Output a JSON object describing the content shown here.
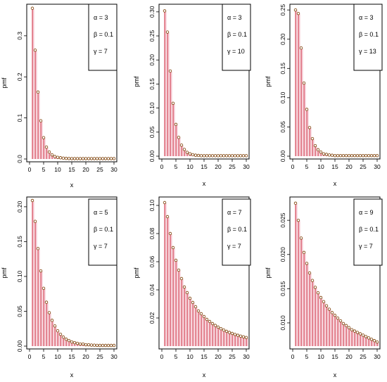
{
  "chart_data": [
    {
      "type": "stem",
      "xlabel": "x",
      "ylabel": "pmf",
      "x": [
        1,
        2,
        3,
        4,
        5,
        6,
        7,
        8,
        9,
        10,
        11,
        12,
        13,
        14,
        15,
        16,
        17,
        18,
        19,
        20,
        21,
        22,
        23,
        24,
        25,
        26,
        27,
        28,
        29,
        30
      ],
      "values": [
        0.367,
        0.265,
        0.163,
        0.093,
        0.052,
        0.029,
        0.017,
        0.01,
        0.006,
        0.004,
        0.003,
        0.002,
        0.0015,
        0.0012,
        0.001,
        0.001,
        0.001,
        0.001,
        0.001,
        0.001,
        0.001,
        0.001,
        0.001,
        0.001,
        0.001,
        0.001,
        0.001,
        0.001,
        0.001,
        0.001
      ],
      "xlim": [
        0,
        30
      ],
      "ylim": [
        0,
        0.37
      ],
      "xticks": [
        "0",
        "5",
        "10",
        "15",
        "20",
        "25",
        "30"
      ],
      "yticks": [
        "0.0",
        "0.1",
        "0.2",
        "0.3"
      ],
      "ytick_values": [
        0,
        0.1,
        0.2,
        0.3
      ],
      "legend": [
        "α = 3",
        "β = 0.1",
        "γ = 7"
      ],
      "legend_position": "top-right",
      "colors": {
        "stem": "#c8142a",
        "point": "#7a3b00",
        "shadow": "#f5c8d2"
      }
    },
    {
      "type": "stem",
      "xlabel": "x",
      "ylabel": "pmf",
      "x": [
        1,
        2,
        3,
        4,
        5,
        6,
        7,
        8,
        9,
        10,
        11,
        12,
        13,
        14,
        15,
        16,
        17,
        18,
        19,
        20,
        21,
        22,
        23,
        24,
        25,
        26,
        27,
        28,
        29,
        30
      ],
      "values": [
        0.302,
        0.258,
        0.177,
        0.11,
        0.066,
        0.039,
        0.023,
        0.014,
        0.008,
        0.005,
        0.003,
        0.002,
        0.0015,
        0.001,
        0.001,
        0.001,
        0.001,
        0.001,
        0.001,
        0.001,
        0.001,
        0.001,
        0.001,
        0.001,
        0.001,
        0.001,
        0.001,
        0.001,
        0.001,
        0.001
      ],
      "xlim": [
        0,
        30
      ],
      "ylim": [
        0,
        0.31
      ],
      "xticks": [
        "0",
        "5",
        "10",
        "15",
        "20",
        "25",
        "30"
      ],
      "yticks": [
        "0.00",
        "0.05",
        "0.10",
        "0.15",
        "0.20",
        "0.25",
        "0.30"
      ],
      "ytick_values": [
        0,
        0.05,
        0.1,
        0.15,
        0.2,
        0.25,
        0.3
      ],
      "legend": [
        "α = 3",
        "β = 0.1",
        "γ = 10"
      ],
      "legend_position": "top-right",
      "colors": {
        "stem": "#c8142a",
        "point": "#7a3b00",
        "shadow": "#f5c8d2"
      }
    },
    {
      "type": "stem",
      "xlabel": "x",
      "ylabel": "pmf",
      "x": [
        1,
        2,
        3,
        4,
        5,
        6,
        7,
        8,
        9,
        10,
        11,
        12,
        13,
        14,
        15,
        16,
        17,
        18,
        19,
        20,
        21,
        22,
        23,
        24,
        25,
        26,
        27,
        28,
        29,
        30
      ],
      "values": [
        0.25,
        0.244,
        0.185,
        0.125,
        0.08,
        0.049,
        0.03,
        0.018,
        0.011,
        0.007,
        0.004,
        0.003,
        0.002,
        0.0015,
        0.001,
        0.001,
        0.001,
        0.001,
        0.001,
        0.001,
        0.001,
        0.001,
        0.001,
        0.001,
        0.001,
        0.001,
        0.001,
        0.001,
        0.001,
        0.001
      ],
      "xlim": [
        0,
        30
      ],
      "ylim": [
        0,
        0.255
      ],
      "xticks": [
        "0",
        "5",
        "10",
        "15",
        "20",
        "25",
        "30"
      ],
      "yticks": [
        "0.00",
        "0.05",
        "0.10",
        "0.15",
        "0.20",
        "0.25"
      ],
      "ytick_values": [
        0,
        0.05,
        0.1,
        0.15,
        0.2,
        0.25
      ],
      "legend": [
        "α = 3",
        "β = 0.1",
        "γ = 13"
      ],
      "legend_position": "top-right",
      "colors": {
        "stem": "#c8142a",
        "point": "#7a3b00",
        "shadow": "#f5c8d2"
      }
    },
    {
      "type": "stem",
      "xlabel": "x",
      "ylabel": "pmf",
      "x": [
        1,
        2,
        3,
        4,
        5,
        6,
        7,
        8,
        9,
        10,
        11,
        12,
        13,
        14,
        15,
        16,
        17,
        18,
        19,
        20,
        21,
        22,
        23,
        24,
        25,
        26,
        27,
        28,
        29,
        30
      ],
      "values": [
        0.209,
        0.179,
        0.14,
        0.108,
        0.083,
        0.063,
        0.048,
        0.037,
        0.029,
        0.022,
        0.017,
        0.013,
        0.01,
        0.008,
        0.006,
        0.005,
        0.004,
        0.003,
        0.003,
        0.002,
        0.002,
        0.0015,
        0.0013,
        0.0011,
        0.001,
        0.001,
        0.001,
        0.001,
        0.001,
        0.001
      ],
      "xlim": [
        0,
        30
      ],
      "ylim": [
        0,
        0.21
      ],
      "xticks": [
        "0",
        "5",
        "10",
        "15",
        "20",
        "25",
        "30"
      ],
      "yticks": [
        "0.00",
        "0.05",
        "0.10",
        "0.15",
        "0.20"
      ],
      "ytick_values": [
        0,
        0.05,
        0.1,
        0.15,
        0.2
      ],
      "legend": [
        "α = 5",
        "β = 0.1",
        "γ = 7"
      ],
      "legend_position": "top-right",
      "colors": {
        "stem": "#c8142a",
        "point": "#7a3b00",
        "shadow": "#f5c8d2"
      }
    },
    {
      "type": "stem",
      "xlabel": "x",
      "ylabel": "pmf",
      "x": [
        1,
        2,
        3,
        4,
        5,
        6,
        7,
        8,
        9,
        10,
        11,
        12,
        13,
        14,
        15,
        16,
        17,
        18,
        19,
        20,
        21,
        22,
        23,
        24,
        25,
        26,
        27,
        28,
        29,
        30
      ],
      "values": [
        0.102,
        0.092,
        0.08,
        0.07,
        0.061,
        0.054,
        0.048,
        0.042,
        0.038,
        0.034,
        0.031,
        0.028,
        0.025,
        0.023,
        0.021,
        0.019,
        0.0175,
        0.016,
        0.0147,
        0.0135,
        0.0124,
        0.0114,
        0.0105,
        0.0097,
        0.009,
        0.0083,
        0.0077,
        0.0071,
        0.0066,
        0.0061
      ],
      "xlim": [
        0,
        30
      ],
      "ylim": [
        0,
        0.104
      ],
      "xticks": [
        "0",
        "5",
        "10",
        "15",
        "20",
        "25",
        "30"
      ],
      "yticks": [
        "0.02",
        "0.04",
        "0.06",
        "0.08",
        "0.10"
      ],
      "ytick_values": [
        0.02,
        0.04,
        0.06,
        0.08,
        0.1
      ],
      "legend": [
        "α = 7",
        "β = 0.1",
        "γ = 7"
      ],
      "legend_position": "top-right",
      "colors": {
        "stem": "#c8142a",
        "point": "#7a3b00",
        "shadow": "#f5c8d2"
      }
    },
    {
      "type": "stem",
      "xlabel": "x",
      "ylabel": "pmf",
      "x": [
        1,
        2,
        3,
        4,
        5,
        6,
        7,
        8,
        9,
        10,
        11,
        12,
        13,
        14,
        15,
        16,
        17,
        18,
        19,
        20,
        21,
        22,
        23,
        24,
        25,
        26,
        27,
        28,
        29,
        30
      ],
      "values": [
        0.0275,
        0.025,
        0.0224,
        0.0203,
        0.0187,
        0.0173,
        0.0162,
        0.0152,
        0.0144,
        0.0137,
        0.0131,
        0.0125,
        0.012,
        0.0115,
        0.0111,
        0.0107,
        0.0103,
        0.0099,
        0.0096,
        0.0093,
        0.009,
        0.0088,
        0.0086,
        0.0084,
        0.0082,
        0.008,
        0.0078,
        0.0076,
        0.0074,
        0.0072
      ],
      "xlim": [
        0,
        30
      ],
      "ylim": [
        0.0066,
        0.028
      ],
      "xticks": [
        "0",
        "5",
        "10",
        "15",
        "20",
        "25",
        "30"
      ],
      "yticks": [
        "0.010",
        "0.015",
        "0.020",
        "0.025"
      ],
      "ytick_values": [
        0.01,
        0.015,
        0.02,
        0.025
      ],
      "legend": [
        "α = 9",
        "β = 0.1",
        "γ = 7"
      ],
      "legend_position": "top-right",
      "colors": {
        "stem": "#c8142a",
        "point": "#7a3b00",
        "shadow": "#f5c8d2"
      }
    }
  ]
}
